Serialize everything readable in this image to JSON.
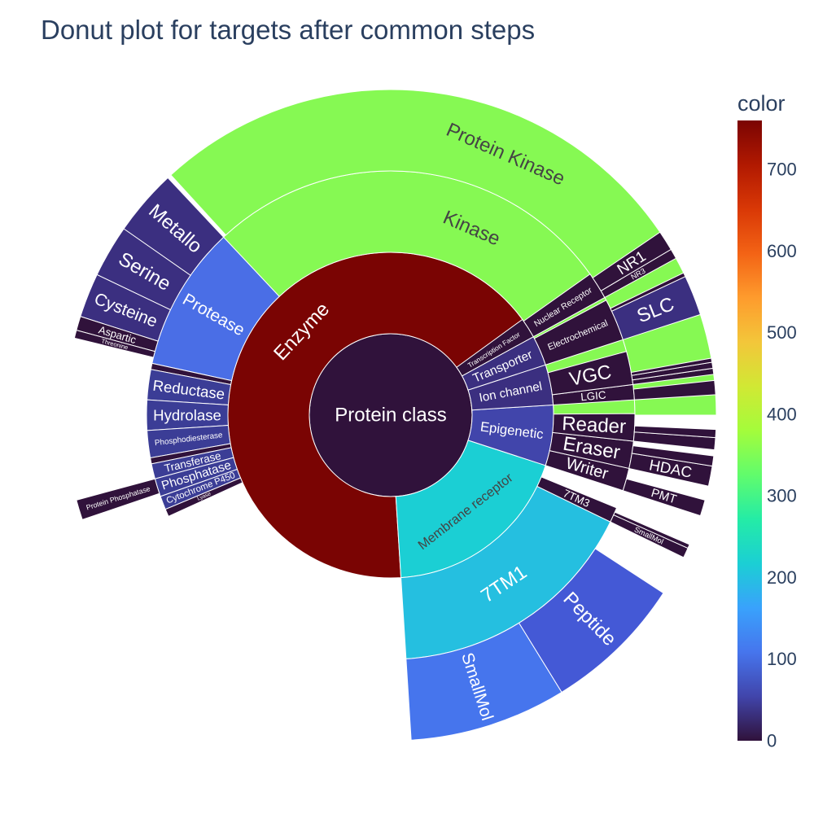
{
  "chart_data": {
    "type": "sunburst",
    "title": "Donut plot for targets after common steps",
    "colorbar": {
      "title": "color",
      "range": [
        0,
        760
      ],
      "ticks": [
        0,
        100,
        200,
        300,
        400,
        500,
        600,
        700
      ],
      "colorscale": [
        "#30123b",
        "#4145ab",
        "#4675ed",
        "#39a2fc",
        "#1bcfd4",
        "#24eca6",
        "#61fc6c",
        "#a4fc3b",
        "#d1e834",
        "#f3c63a",
        "#fe9b2d",
        "#f36315",
        "#d93806",
        "#b11901",
        "#7a0403"
      ]
    },
    "root": {
      "label": "Protein class",
      "value": 1000,
      "color": "#30123b",
      "children": [
        {
          "label": "Enzyme",
          "value": 760,
          "color": "#7a0403",
          "children": [
            {
              "label": "Kinase",
              "value": 370,
              "color": "#86f953",
              "children": [
                {
                  "label": "Protein Kinase",
                  "value": 368,
                  "color": "#86f953"
                }
              ]
            },
            {
              "label": "Protease",
              "value": 96,
              "color": "#4a6ee6",
              "children": [
                {
                  "label": "Metallo",
                  "value": 33,
                  "color": "#3b2f80"
                },
                {
                  "label": "Serine",
                  "value": 26,
                  "color": "#3b2f80"
                },
                {
                  "label": "Cysteine",
                  "value": 22,
                  "color": "#3b2f80"
                },
                {
                  "label": "Aspartic",
                  "value": 7,
                  "color": "#30123b"
                },
                {
                  "label": "Threonine",
                  "value": 4,
                  "color": "#30123b"
                }
              ]
            },
            {
              "label": "",
              "value": 4,
              "color": "#30123b"
            },
            {
              "label": "Reductase",
              "value": 20,
              "color": "#3b3d96"
            },
            {
              "label": "Hydrolase",
              "value": 20,
              "color": "#3b3d96"
            },
            {
              "label": "Phosphodiesterase",
              "value": 18,
              "color": "#3b3d96"
            },
            {
              "label": "",
              "value": 4,
              "color": "#30123b"
            },
            {
              "label": "Transferase",
              "value": 10,
              "color": "#3b3d96"
            },
            {
              "label": "Phosphatase",
              "value": 12,
              "color": "#3b3d96",
              "children": [
                {
                  "label": "Protein Phosphatase",
                  "value": 10,
                  "color": "#30123b"
                }
              ]
            },
            {
              "label": "Cytochrome P450",
              "value": 9,
              "color": "#3b3d96"
            },
            {
              "label": "Lyase",
              "value": 5,
              "color": "#30123b"
            }
          ]
        },
        {
          "label": "Membrane receptor",
          "value": 190,
          "color": "#1bcfd4",
          "children": [
            {
              "label": "7TM1",
              "value": 168,
              "color": "#25bfe0",
              "children": [
                {
                  "label": "SmallMol",
                  "value": 78,
                  "color": "#4675ed"
                },
                {
                  "label": "Peptide",
                  "value": 70,
                  "color": "#4459d6"
                }
              ]
            },
            {
              "label": "7TM3",
              "value": 10,
              "color": "#30123b",
              "children": [
                {
                  "label": "SmallMol",
                  "value": 5,
                  "color": "#30123b"
                },
                {
                  "label": "",
                  "value": 2,
                  "color": "#30123b"
                }
              ]
            }
          ]
        },
        {
          "label": "Epigenetic",
          "value": 60,
          "color": "#4145ab",
          "children": [
            {
              "label": "Writer",
              "value": 15,
              "color": "#30123b",
              "children": [
                {
                  "label": "PMT",
                  "value": 8,
                  "color": "#30123b"
                }
              ]
            },
            {
              "label": "Eraser",
              "value": 18,
              "color": "#30123b",
              "children": [
                {
                  "label": "HDAC",
                  "value": 10,
                  "color": "#30123b"
                },
                {
                  "label": "",
                  "value": 5,
                  "color": "#30123b"
                }
              ]
            },
            {
              "label": "Reader",
              "value": 18,
              "color": "#30123b",
              "children": [
                {
                  "label": "",
                  "value": 6,
                  "color": "#30123b"
                },
                {
                  "label": "",
                  "value": 4,
                  "color": "#30123b"
                }
              ]
            }
          ]
        },
        {
          "label": "Ion channel",
          "value": 40,
          "color": "#3b2f80",
          "children": [
            {
              "label": "LGIC",
              "value": 10,
              "color": "#30123b",
              "children": [
                {
                  "label": "",
                  "value": 7,
                  "color": "#30123b"
                }
              ]
            },
            {
              "label": "VGC",
              "value": 22,
              "color": "#30123b",
              "children": [
                {
                  "label": "",
                  "value": 3,
                  "color": "#30123b"
                },
                {
                  "label": "",
                  "value": 3,
                  "color": "#30123b"
                },
                {
                  "label": "",
                  "value": 2,
                  "color": "#30123b"
                }
              ]
            }
          ]
        },
        {
          "label": "Transporter",
          "value": 30,
          "color": "#3b2f80",
          "children": [
            {
              "label": "Electrochemical",
              "value": 28,
              "color": "#30123b",
              "children": [
                {
                  "label": "SLC",
                  "value": 20,
                  "color": "#3b2f80"
                },
                {
                  "label": "",
                  "value": 2,
                  "color": "#30123b"
                }
              ]
            }
          ]
        },
        {
          "label": "Transcription Factor",
          "value": 20,
          "color": "#30123b",
          "children": [
            {
              "label": "Nuclear Receptor",
              "value": 18,
              "color": "#30123b",
              "children": [
                {
                  "label": "NR3",
                  "value": 5,
                  "color": "#30123b"
                },
                {
                  "label": "NR1",
                  "value": 10,
                  "color": "#30123b"
                }
              ]
            }
          ]
        }
      ]
    }
  }
}
